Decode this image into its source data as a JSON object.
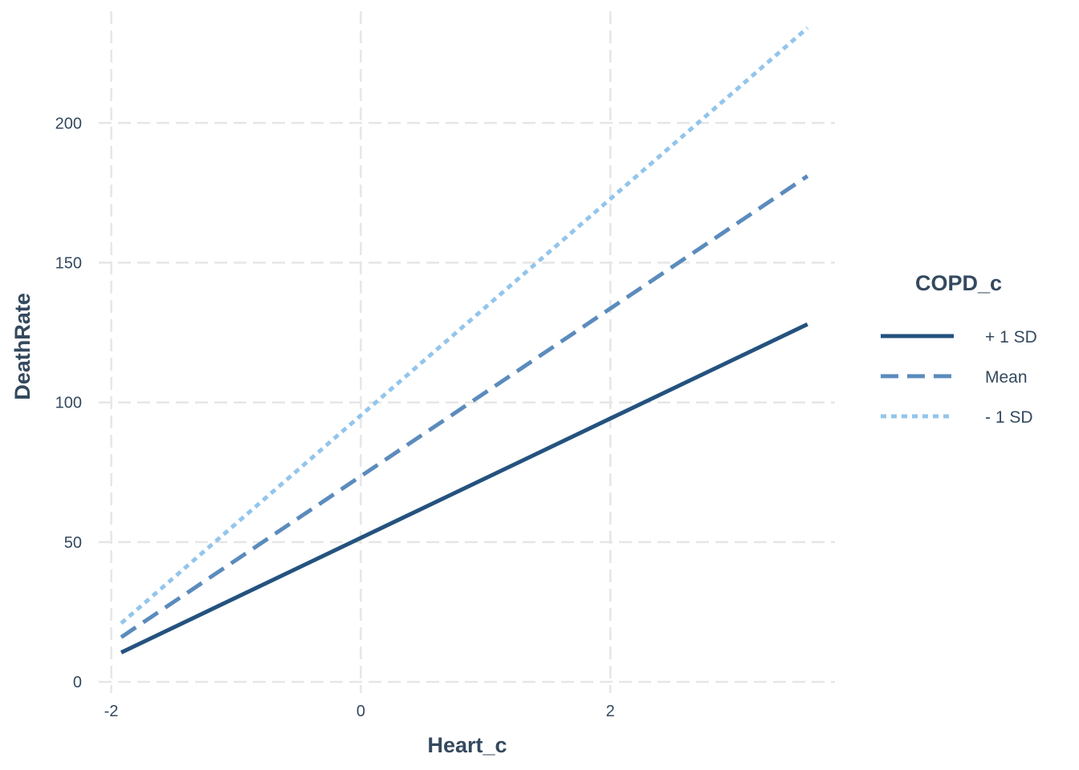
{
  "chart_data": {
    "type": "line",
    "title": "",
    "xlabel": "Heart_c",
    "ylabel": "DeathRate",
    "xlim": [
      -2.1,
      3.8
    ],
    "ylim": [
      -8,
      244
    ],
    "x_ticks": [
      -2,
      0,
      2
    ],
    "x_tick_labels": [
      "-2",
      "0",
      "2"
    ],
    "y_ticks": [
      0,
      50,
      100,
      150,
      200
    ],
    "y_tick_labels": [
      "0",
      "50",
      "100",
      "150",
      "200"
    ],
    "grid": true,
    "legend": {
      "title": "COPD_c",
      "placement": "right"
    },
    "series": [
      {
        "name": "+ 1 SD",
        "color": "#24527f",
        "linestyle": "solid",
        "x": [
          -1.92,
          3.58
        ],
        "y": [
          10.5,
          128
        ]
      },
      {
        "name": "Mean",
        "color": "#5b8bbd",
        "linestyle": "dashed",
        "x": [
          -1.92,
          3.58
        ],
        "y": [
          16,
          181
        ]
      },
      {
        "name": "- 1 SD",
        "color": "#93c5ec",
        "linestyle": "dotted",
        "x": [
          -1.92,
          3.58
        ],
        "y": [
          21,
          234
        ]
      }
    ]
  }
}
